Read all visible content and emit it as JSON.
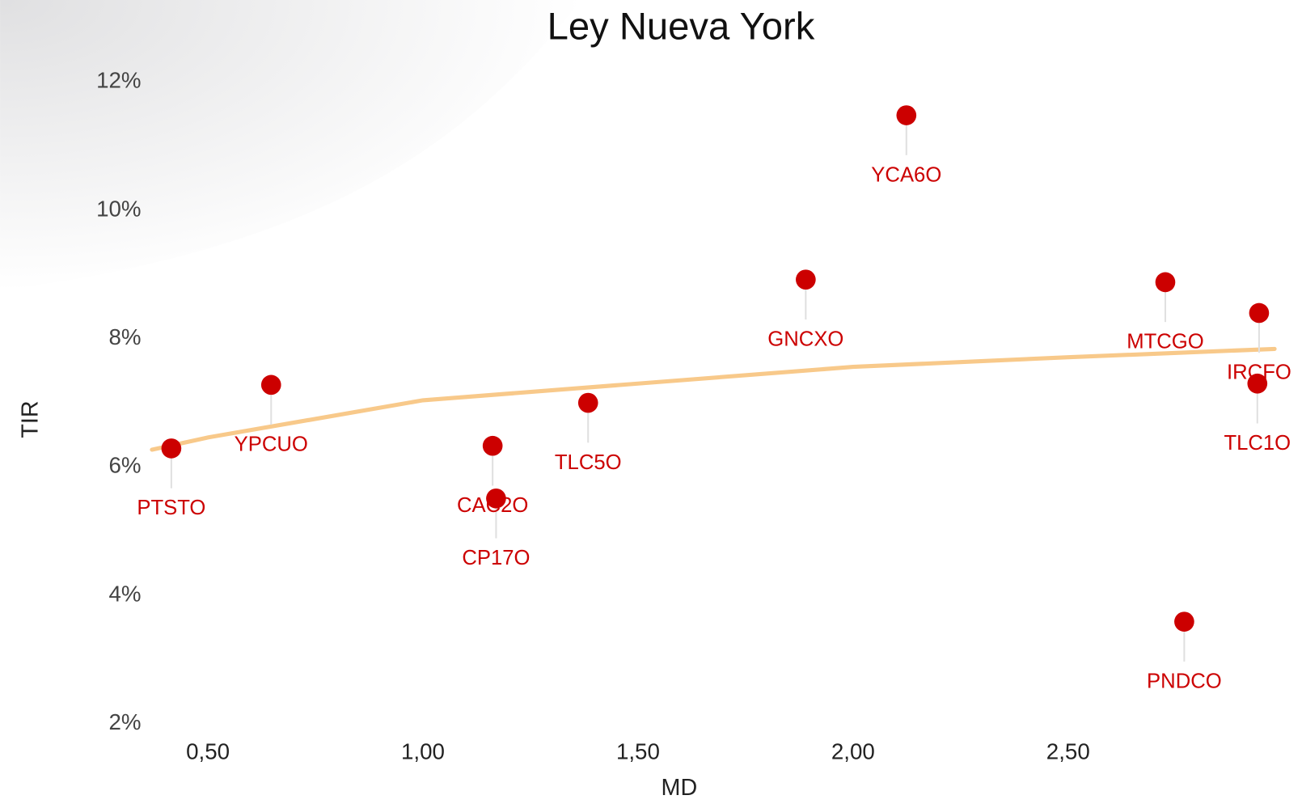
{
  "chart_data": {
    "type": "scatter",
    "title": "Ley Nueva York",
    "xlabel": "MD",
    "ylabel": "TIR",
    "xlim": [
      0.37,
      2.98
    ],
    "ylim": [
      1.8,
      12.5
    ],
    "xticks": [
      {
        "value": 0.5,
        "label": "0,50"
      },
      {
        "value": 1.0,
        "label": "1,00"
      },
      {
        "value": 1.5,
        "label": "1,50"
      },
      {
        "value": 2.0,
        "label": "2,00"
      },
      {
        "value": 2.5,
        "label": "2,50"
      }
    ],
    "yticks": [
      {
        "value": 2,
        "label": "2%"
      },
      {
        "value": 4,
        "label": "4%"
      },
      {
        "value": 6,
        "label": "6%"
      },
      {
        "value": 8,
        "label": "8%"
      },
      {
        "value": 10,
        "label": "10%"
      },
      {
        "value": 12,
        "label": "12%"
      }
    ],
    "series": [
      {
        "color": "#cc0000",
        "labels": [
          "PTSTO",
          "YPCUO",
          "CAC2O",
          "CP17O",
          "TLC5O",
          "GNCXO",
          "YCA6O",
          "MTCGO",
          "IRCFO",
          "TLC1O",
          "PNDCO"
        ],
        "x": [
          0.415,
          0.647,
          1.162,
          1.17,
          1.384,
          1.89,
          2.124,
          2.726,
          2.944,
          2.94,
          2.77
        ],
        "values": [
          6.29,
          7.28,
          6.33,
          5.51,
          7.0,
          8.92,
          11.48,
          8.88,
          8.4,
          7.3,
          3.59
        ]
      }
    ],
    "trend": {
      "color": "#f8c98a",
      "x": [
        0.37,
        0.5,
        1.0,
        1.5,
        2.0,
        2.5,
        2.98
      ],
      "values": [
        6.27,
        6.46,
        7.04,
        7.3,
        7.56,
        7.71,
        7.84
      ]
    }
  }
}
